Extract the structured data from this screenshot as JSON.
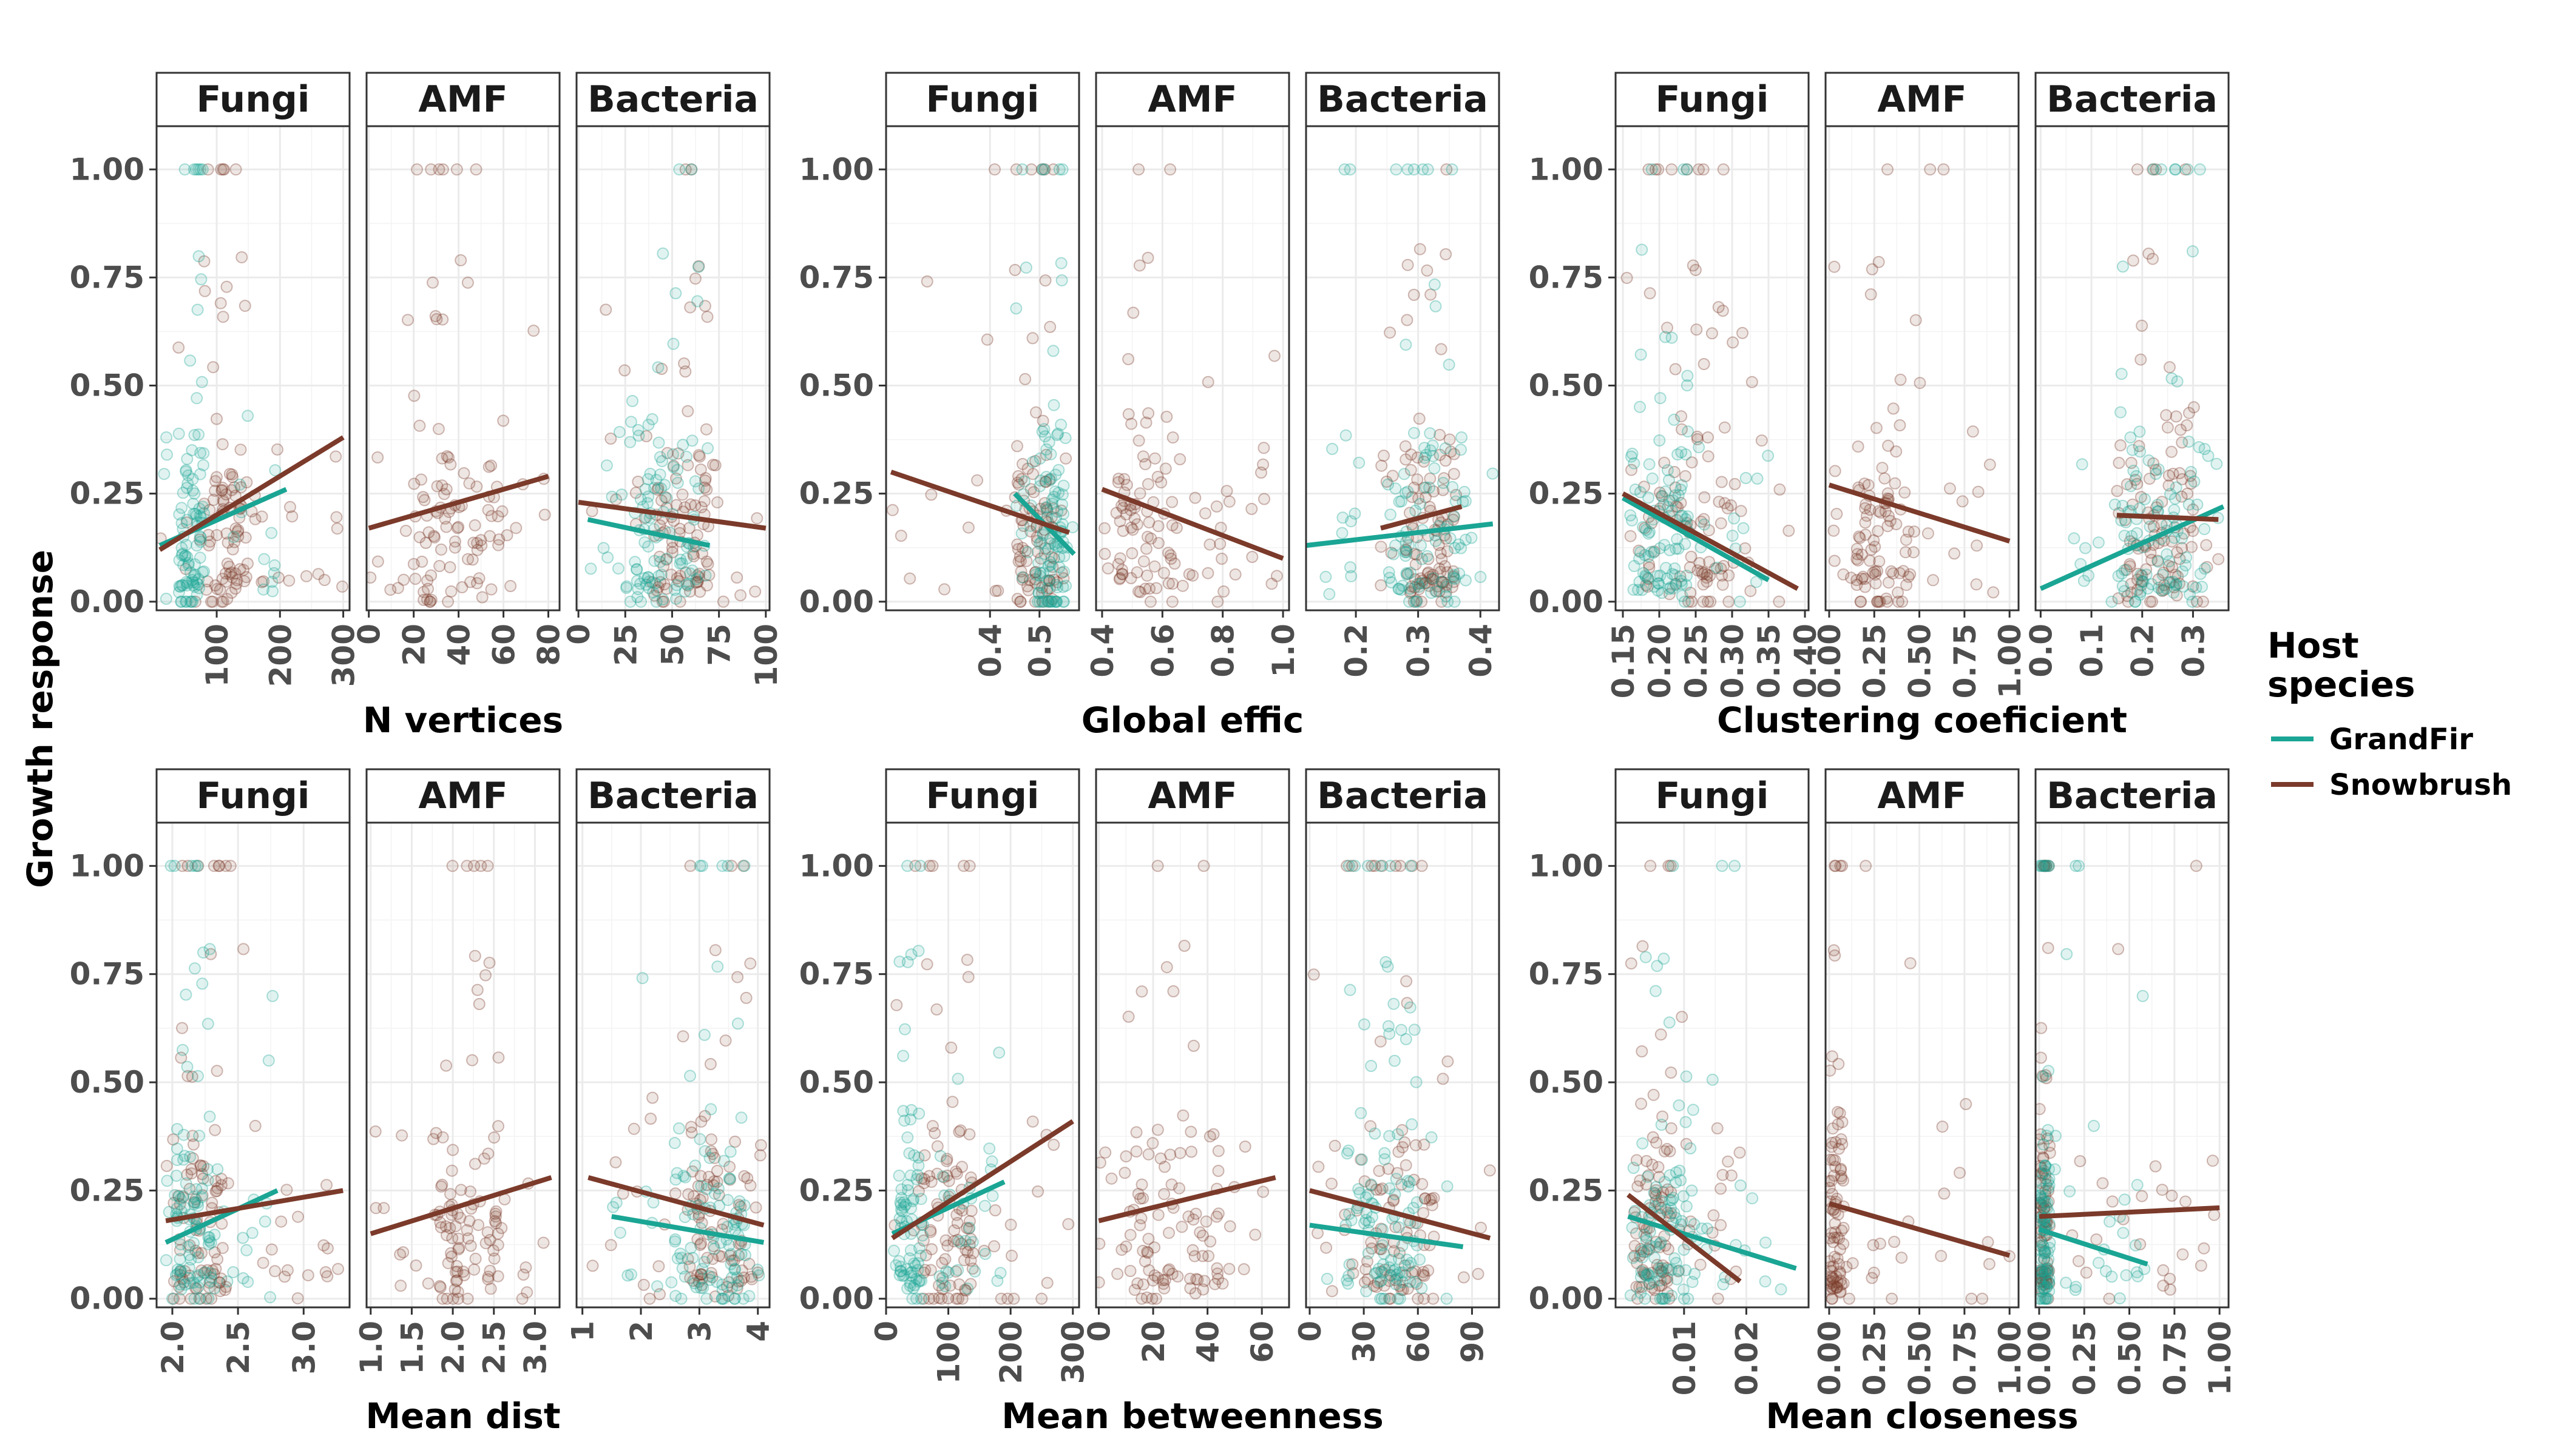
{
  "y_axis_title": "Growth response",
  "legend": {
    "title_line1": "Host",
    "title_line2": "species",
    "entries": [
      {
        "label": "GrandFir",
        "color": "#1aa594"
      },
      {
        "label": "Snowbrush",
        "color": "#7b3a2a"
      }
    ]
  },
  "facets": [
    "Fungi",
    "AMF",
    "Bacteria"
  ],
  "y_ticks": [
    "0.00",
    "0.25",
    "0.50",
    "0.75",
    "1.00"
  ],
  "chart_data": [
    {
      "type": "scatter",
      "xlabel": "N vertices",
      "ylabel": "Growth response",
      "ylim": [
        -0.02,
        1.1
      ],
      "panels": [
        {
          "facet": "Fungi",
          "xlim": [
            5,
            310
          ],
          "ticks": [
            100,
            200,
            300
          ],
          "tick_labels": [
            "100",
            "200",
            "300"
          ],
          "grandfir": {
            "range": [
              10,
              210
            ],
            "cx": [
              40,
              80
            ],
            "fit": [
              [
                10,
                0.13
              ],
              [
                210,
                0.26
              ]
            ]
          },
          "snowbrush": {
            "range": [
              10,
              300
            ],
            "cx": [
              80,
              150
            ],
            "fit": [
              [
                10,
                0.12
              ],
              [
                300,
                0.38
              ]
            ]
          }
        },
        {
          "facet": "AMF",
          "xlim": [
            -1,
            85
          ],
          "ticks": [
            0,
            20,
            40,
            60,
            80
          ],
          "tick_labels": [
            "0",
            "20",
            "40",
            "60",
            "80"
          ],
          "grandfir": null,
          "snowbrush": {
            "range": [
              0,
              80
            ],
            "cx": [
              20,
              60
            ],
            "fit": [
              [
                0,
                0.17
              ],
              [
                80,
                0.29
              ]
            ]
          }
        },
        {
          "facet": "Bacteria",
          "xlim": [
            -1,
            102
          ],
          "ticks": [
            0,
            25,
            50,
            75,
            100
          ],
          "tick_labels": [
            "0",
            "25",
            "50",
            "75",
            "100"
          ],
          "grandfir": {
            "range": [
              5,
              70
            ],
            "cx": [
              30,
              65
            ],
            "fit": [
              [
                5,
                0.19
              ],
              [
                70,
                0.13
              ]
            ]
          },
          "snowbrush": {
            "range": [
              0,
              100
            ],
            "cx": [
              40,
              70
            ],
            "fit": [
              [
                0,
                0.23
              ],
              [
                100,
                0.17
              ]
            ]
          }
        }
      ]
    },
    {
      "type": "scatter",
      "xlabel": "Global effic",
      "ylabel": "Growth response",
      "ylim": [
        -0.02,
        1.1
      ],
      "panels": [
        {
          "facet": "Fungi",
          "xlim": [
            0.19,
            0.58
          ],
          "ticks": [
            0.4,
            0.5
          ],
          "tick_labels": [
            "0.4",
            "0.5"
          ],
          "grandfir": {
            "range": [
              0.45,
              0.57
            ],
            "cx": [
              0.5,
              0.55
            ],
            "fit": [
              [
                0.45,
                0.25
              ],
              [
                0.57,
                0.11
              ]
            ]
          },
          "snowbrush": {
            "range": [
              0.2,
              0.56
            ],
            "cx": [
              0.45,
              0.53
            ],
            "fit": [
              [
                0.2,
                0.3
              ],
              [
                0.56,
                0.16
              ]
            ]
          }
        },
        {
          "facet": "AMF",
          "xlim": [
            0.38,
            1.02
          ],
          "ticks": [
            0.4,
            0.6,
            0.8,
            1.0
          ],
          "tick_labels": [
            "0.4",
            "0.6",
            "0.8",
            "1.0"
          ],
          "grandfir": null,
          "snowbrush": {
            "range": [
              0.4,
              1.0
            ],
            "cx": [
              0.45,
              0.65
            ],
            "fit": [
              [
                0.4,
                0.26
              ],
              [
                1.0,
                0.1
              ]
            ]
          }
        },
        {
          "facet": "Bacteria",
          "xlim": [
            0.12,
            0.43
          ],
          "ticks": [
            0.2,
            0.3,
            0.4
          ],
          "tick_labels": [
            "0.2",
            "0.3",
            "0.4"
          ],
          "grandfir": {
            "range": [
              0.12,
              0.42
            ],
            "cx": [
              0.25,
              0.38
            ],
            "fit": [
              [
                0.12,
                0.13
              ],
              [
                0.42,
                0.18
              ]
            ]
          },
          "snowbrush": {
            "range": [
              0.24,
              0.37
            ],
            "cx": [
              0.28,
              0.36
            ],
            "fit": [
              [
                0.24,
                0.17
              ],
              [
                0.37,
                0.22
              ]
            ]
          }
        }
      ]
    },
    {
      "type": "scatter",
      "xlabel": "Clustering coeficient",
      "ylabel": "Growth response",
      "ylim": [
        -0.02,
        1.1
      ],
      "panels": [
        {
          "facet": "Fungi",
          "xlim": [
            0.14,
            0.405
          ],
          "ticks": [
            0.15,
            0.2,
            0.25,
            0.3,
            0.35,
            0.4
          ],
          "tick_labels": [
            "0.15",
            "0.20",
            "0.25",
            "0.30",
            "0.35",
            "0.40"
          ],
          "grandfir": {
            "range": [
              0.15,
              0.35
            ],
            "cx": [
              0.16,
              0.24
            ],
            "fit": [
              [
                0.15,
                0.24
              ],
              [
                0.35,
                0.05
              ]
            ]
          },
          "snowbrush": {
            "range": [
              0.15,
              0.39
            ],
            "cx": [
              0.18,
              0.3
            ],
            "fit": [
              [
                0.15,
                0.25
              ],
              [
                0.39,
                0.03
              ]
            ]
          }
        },
        {
          "facet": "AMF",
          "xlim": [
            -0.02,
            1.05
          ],
          "ticks": [
            0,
            0.25,
            0.5,
            0.75,
            1.0
          ],
          "tick_labels": [
            "0.00",
            "0.25",
            "0.50",
            "0.75",
            "1.00"
          ],
          "grandfir": null,
          "snowbrush": {
            "range": [
              0.0,
              1.0
            ],
            "cx": [
              0.15,
              0.45
            ],
            "fit": [
              [
                0.0,
                0.27
              ],
              [
                1.0,
                0.14
              ]
            ]
          }
        },
        {
          "facet": "Bacteria",
          "xlim": [
            -0.01,
            0.37
          ],
          "ticks": [
            0,
            0.1,
            0.2,
            0.3
          ],
          "tick_labels": [
            "0.0",
            "0.1",
            "0.2",
            "0.3"
          ],
          "grandfir": {
            "range": [
              0.0,
              0.36
            ],
            "cx": [
              0.15,
              0.33
            ],
            "fit": [
              [
                0.0,
                0.03
              ],
              [
                0.36,
                0.22
              ]
            ]
          },
          "snowbrush": {
            "range": [
              0.15,
              0.35
            ],
            "cx": [
              0.17,
              0.3
            ],
            "fit": [
              [
                0.15,
                0.2
              ],
              [
                0.35,
                0.19
              ]
            ]
          }
        }
      ]
    },
    {
      "type": "scatter",
      "xlabel": "Mean dist",
      "ylabel": "Growth response",
      "ylim": [
        -0.02,
        1.1
      ],
      "panels": [
        {
          "facet": "Fungi",
          "xlim": [
            1.88,
            3.35
          ],
          "ticks": [
            2.0,
            2.5,
            3.0
          ],
          "tick_labels": [
            "2.0",
            "2.5",
            "3.0"
          ],
          "grandfir": {
            "range": [
              1.95,
              2.8
            ],
            "cx": [
              2.0,
              2.3
            ],
            "fit": [
              [
                1.95,
                0.13
              ],
              [
                2.8,
                0.25
              ]
            ]
          },
          "snowbrush": {
            "range": [
              1.95,
              3.3
            ],
            "cx": [
              2.0,
              2.4
            ],
            "fit": [
              [
                1.95,
                0.18
              ],
              [
                3.3,
                0.25
              ]
            ]
          }
        },
        {
          "facet": "AMF",
          "xlim": [
            0.95,
            3.3
          ],
          "ticks": [
            1.0,
            1.5,
            2.0,
            2.5,
            3.0
          ],
          "tick_labels": [
            "1.0",
            "1.5",
            "2.0",
            "2.5",
            "3.0"
          ],
          "grandfir": null,
          "snowbrush": {
            "range": [
              1.0,
              3.2
            ],
            "cx": [
              1.8,
              2.6
            ],
            "fit": [
              [
                1.0,
                0.15
              ],
              [
                3.2,
                0.28
              ]
            ]
          }
        },
        {
          "facet": "Bacteria",
          "xlim": [
            0.9,
            4.2
          ],
          "ticks": [
            1,
            2,
            3,
            4
          ],
          "tick_labels": [
            "1",
            "2",
            "3",
            "4"
          ],
          "grandfir": {
            "range": [
              1.5,
              4.1
            ],
            "cx": [
              2.5,
              3.8
            ],
            "fit": [
              [
                1.5,
                0.19
              ],
              [
                4.1,
                0.13
              ]
            ]
          },
          "snowbrush": {
            "range": [
              1.1,
              4.1
            ],
            "cx": [
              2.8,
              3.9
            ],
            "fit": [
              [
                1.1,
                0.28
              ],
              [
                4.1,
                0.17
              ]
            ]
          }
        }
      ]
    },
    {
      "type": "scatter",
      "xlabel": "Mean betweenness",
      "ylabel": "Growth response",
      "ylim": [
        -0.02,
        1.1
      ],
      "panels": [
        {
          "facet": "Fungi",
          "xlim": [
            0,
            310
          ],
          "ticks": [
            0,
            100,
            200,
            300
          ],
          "tick_labels": [
            "0",
            "100",
            "200",
            "300"
          ],
          "grandfir": {
            "range": [
              10,
              190
            ],
            "cx": [
              20,
              60
            ],
            "fit": [
              [
                10,
                0.15
              ],
              [
                190,
                0.27
              ]
            ]
          },
          "snowbrush": {
            "range": [
              10,
              300
            ],
            "cx": [
              60,
              140
            ],
            "fit": [
              [
                10,
                0.14
              ],
              [
                300,
                0.41
              ]
            ]
          }
        },
        {
          "facet": "AMF",
          "xlim": [
            -1,
            70
          ],
          "ticks": [
            0,
            20,
            40,
            60
          ],
          "tick_labels": [
            "0",
            "20",
            "40",
            "60"
          ],
          "grandfir": null,
          "snowbrush": {
            "range": [
              0,
              65
            ],
            "cx": [
              10,
              45
            ],
            "fit": [
              [
                0,
                0.18
              ],
              [
                65,
                0.28
              ]
            ]
          }
        },
        {
          "facet": "Bacteria",
          "xlim": [
            -2,
            105
          ],
          "ticks": [
            0,
            30,
            60,
            90
          ],
          "tick_labels": [
            "0",
            "30",
            "60",
            "90"
          ],
          "grandfir": {
            "range": [
              0,
              85
            ],
            "cx": [
              20,
              60
            ],
            "fit": [
              [
                0,
                0.17
              ],
              [
                85,
                0.12
              ]
            ]
          },
          "snowbrush": {
            "range": [
              0,
              100
            ],
            "cx": [
              30,
              70
            ],
            "fit": [
              [
                0,
                0.25
              ],
              [
                100,
                0.14
              ]
            ]
          }
        }
      ]
    },
    {
      "type": "scatter",
      "xlabel": "Mean closeness",
      "ylabel": "Growth response",
      "ylim": [
        -0.02,
        1.1
      ],
      "panels": [
        {
          "facet": "Fungi",
          "xlim": [
            -0.001,
            0.03
          ],
          "ticks": [
            0.01,
            0.02
          ],
          "tick_labels": [
            "0.01",
            "0.02"
          ],
          "grandfir": {
            "range": [
              0.001,
              0.028
            ],
            "cx": [
              0.003,
              0.012
            ],
            "fit": [
              [
                0.001,
                0.19
              ],
              [
                0.028,
                0.07
              ]
            ]
          },
          "snowbrush": {
            "range": [
              0.001,
              0.019
            ],
            "cx": [
              0.002,
              0.008
            ],
            "fit": [
              [
                0.001,
                0.24
              ],
              [
                0.019,
                0.04
              ]
            ]
          }
        },
        {
          "facet": "AMF",
          "xlim": [
            -0.02,
            1.05
          ],
          "ticks": [
            0,
            0.25,
            0.5,
            0.75,
            1.0
          ],
          "tick_labels": [
            "0.00",
            "0.25",
            "0.50",
            "0.75",
            "1.00"
          ],
          "grandfir": null,
          "snowbrush": {
            "range": [
              0.0,
              1.0
            ],
            "cx": [
              0.0,
              0.08
            ],
            "fit": [
              [
                0.0,
                0.22
              ],
              [
                1.0,
                0.1
              ]
            ]
          }
        },
        {
          "facet": "Bacteria",
          "xlim": [
            -0.02,
            1.05
          ],
          "ticks": [
            0,
            0.25,
            0.5,
            0.75,
            1.0
          ],
          "tick_labels": [
            "0.00",
            "0.25",
            "0.50",
            "0.75",
            "1.00"
          ],
          "grandfir": {
            "range": [
              0.0,
              0.6
            ],
            "cx": [
              0.0,
              0.06
            ],
            "fit": [
              [
                0.0,
                0.16
              ],
              [
                0.6,
                0.08
              ]
            ]
          },
          "snowbrush": {
            "range": [
              0.0,
              1.0
            ],
            "cx": [
              0.0,
              0.06
            ],
            "fit": [
              [
                0.0,
                0.19
              ],
              [
                1.0,
                0.21
              ]
            ]
          }
        }
      ]
    }
  ]
}
